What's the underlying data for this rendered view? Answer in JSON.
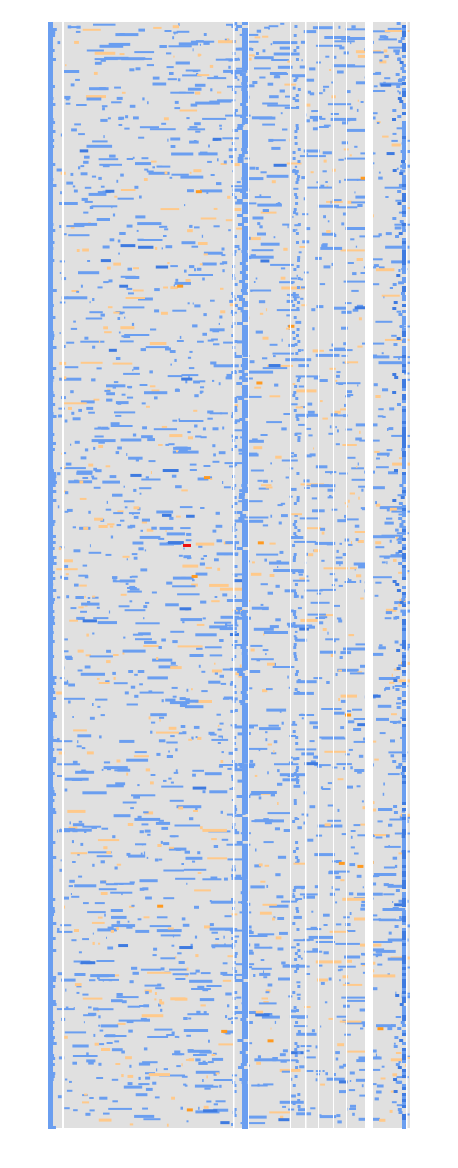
{
  "chart_data": {
    "type": "heatmap",
    "background": "#e0e0e0",
    "colors": {
      "low": "#6a9ef0",
      "dense": "#3f7be0",
      "mid": "#ffc98a",
      "strong": "#ff9a20",
      "peak": "#ee1111"
    }
  }
}
